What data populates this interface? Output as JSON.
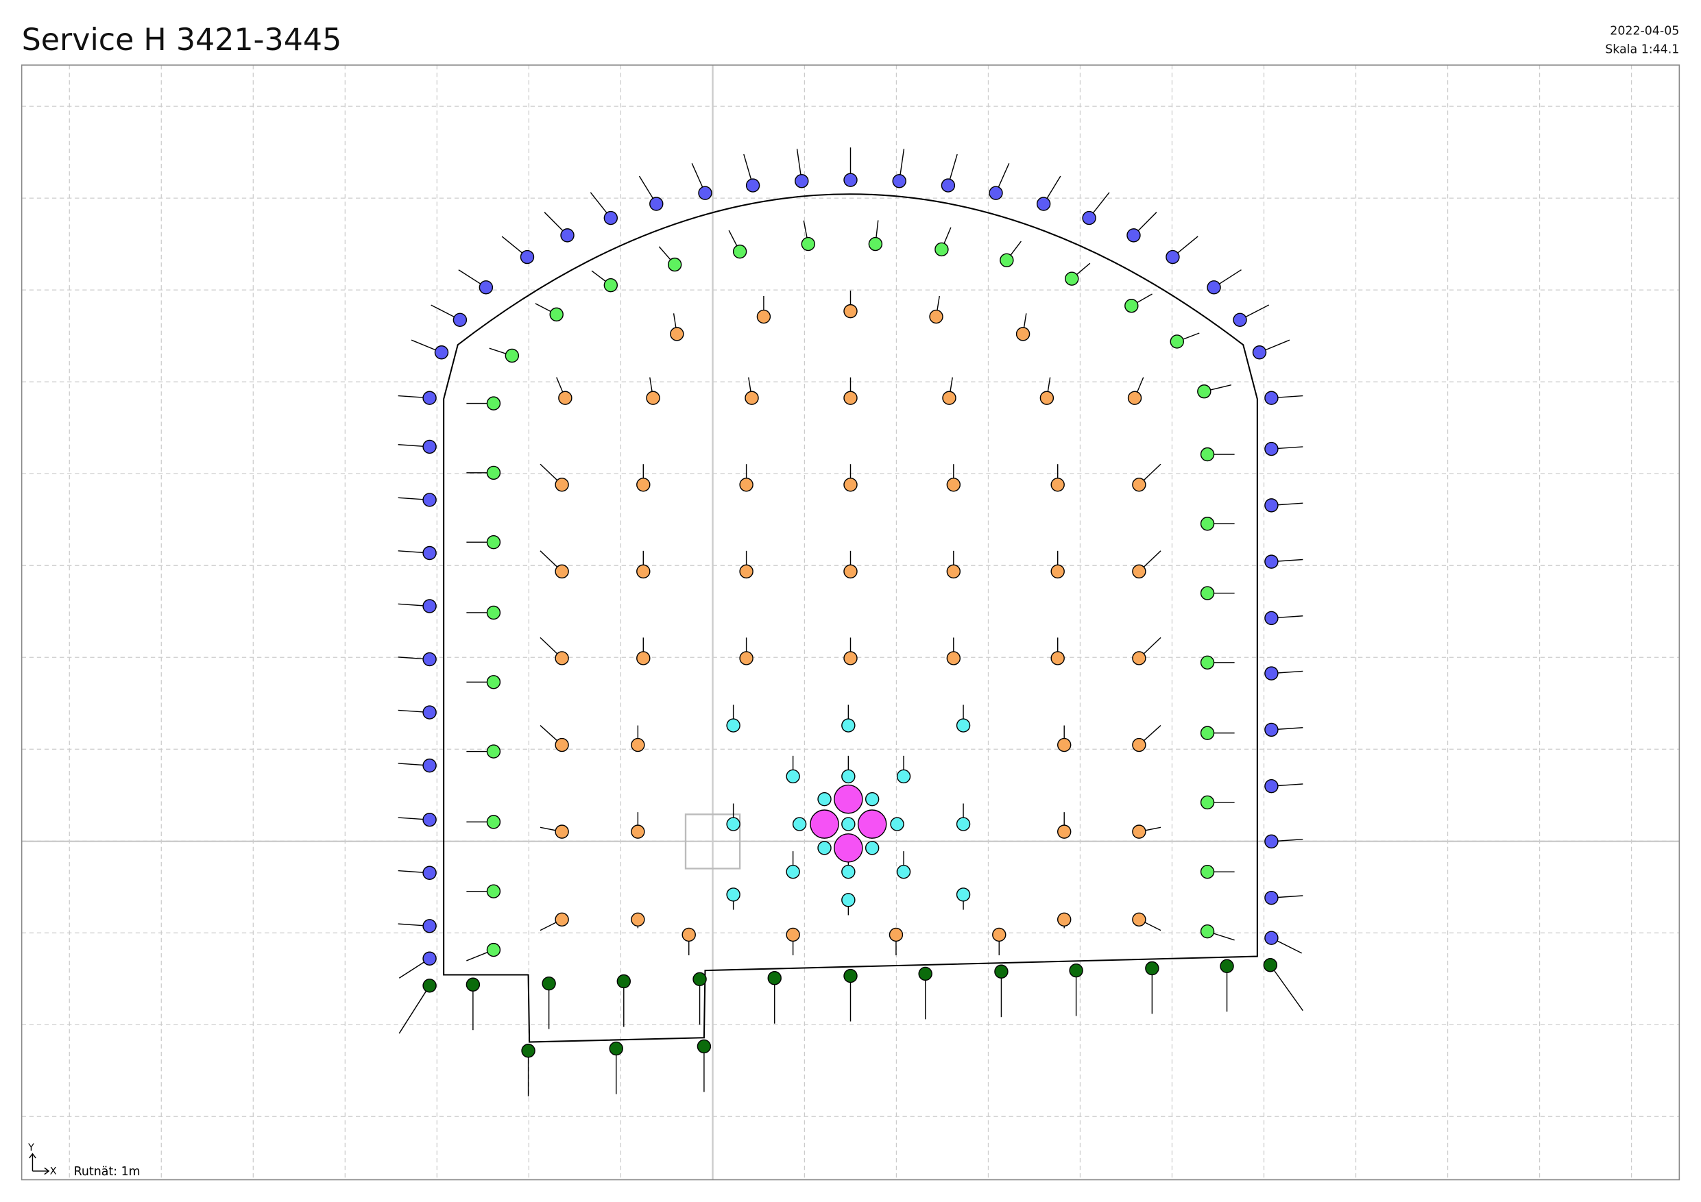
{
  "header": {
    "title": "Service H 3421-3445",
    "date": "2022-04-05",
    "scale": "Skala 1:44.1"
  },
  "footer": {
    "grid": "Rutnät: 1m",
    "axis_y": "Y",
    "axis_x": "X"
  }
}
